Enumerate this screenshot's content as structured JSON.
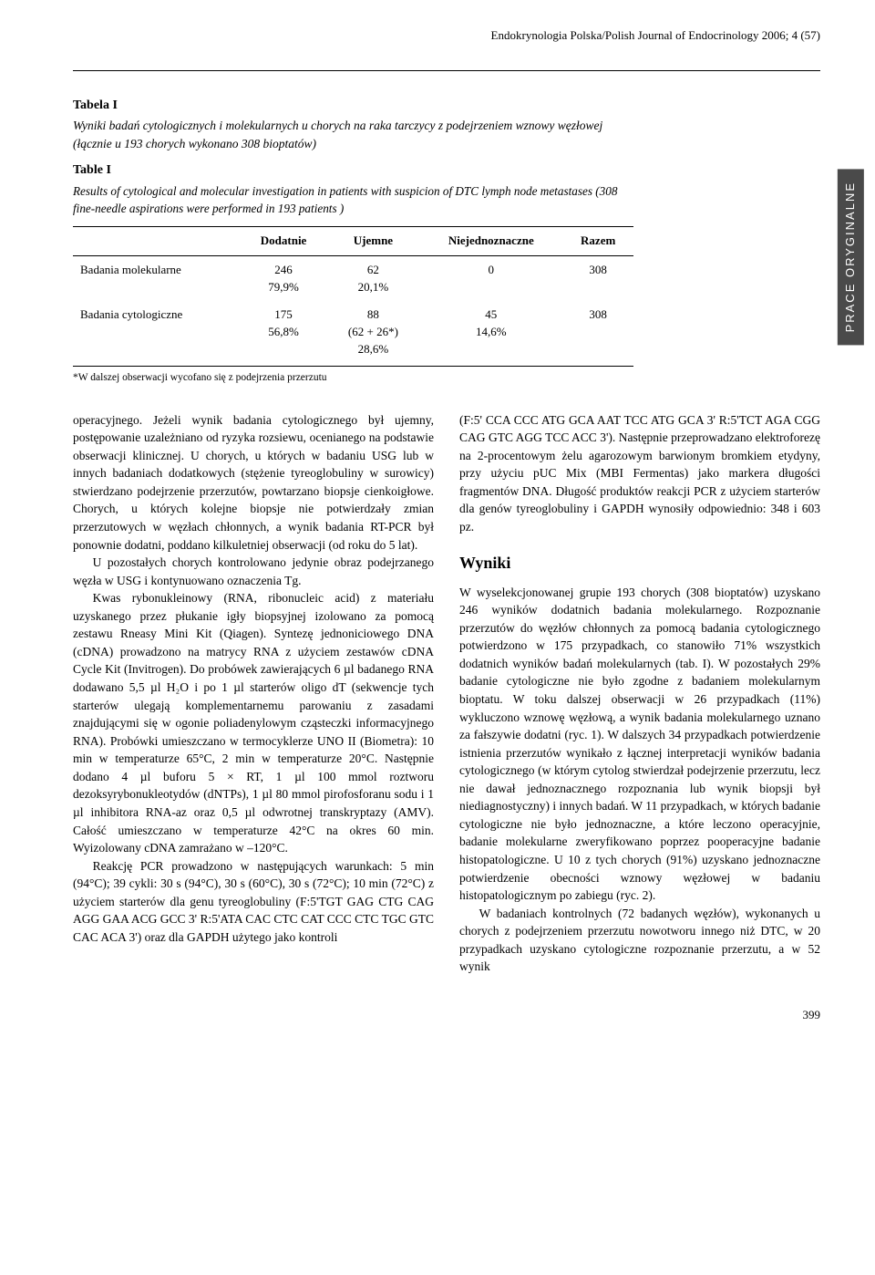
{
  "journal_header": "Endokrynologia Polska/Polish Journal of Endocrinology 2006; 4 (57)",
  "side_label": "PRACE ORYGINALNE",
  "table": {
    "label_pl": "Tabela I",
    "caption_pl": "Wyniki badań cytologicznych i molekularnych u chorych na raka tarczycy z podejrzeniem wznowy węzłowej (łącznie u 193 chorych wykonano 308 bioptatów)",
    "label_en": "Table I",
    "caption_en": "Results of cytological and molecular investigation in patients with suspicion of DTC lymph node metastases (308 fine-needle aspirations were performed in 193 patients )",
    "headers": [
      "",
      "Dodatnie",
      "Ujemne",
      "Niejednoznaczne",
      "Razem"
    ],
    "rows": [
      {
        "label": "Badania molekularne",
        "c1a": "246",
        "c1b": "79,9%",
        "c2a": "62",
        "c2b": "20,1%",
        "c3a": "0",
        "c3b": "",
        "c4a": "308",
        "c4b": ""
      },
      {
        "label": "Badania cytologiczne",
        "c1a": "175",
        "c1b": "56,8%",
        "c2a": "88",
        "c2b": "(62 + 26*)",
        "c2c": "28,6%",
        "c3a": "45",
        "c3b": "14,6%",
        "c4a": "308",
        "c4b": ""
      }
    ],
    "footnote": "*W dalszej obserwacji wycofano się z podejrzenia przerzutu"
  },
  "left_col": {
    "p1": "operacyjnego. Jeżeli wynik badania cytologicznego był ujemny, postępowanie uzależniano od ryzyka rozsiewu, ocenianego na podstawie obserwacji klinicznej. U chorych, u których w badaniu USG lub w innych badaniach dodatkowych (stężenie tyreoglobuliny w surowicy) stwierdzano podejrzenie przerzutów, powtarzano biopsje cienkoigłowe. Chorych, u których kolejne biopsje nie potwierdzały zmian przerzutowych w węzłach chłonnych, a wynik badania RT-PCR był ponownie dodatni, poddano kilkuletniej obserwacji (od roku do 5 lat).",
    "p2": "U pozostałych chorych kontrolowano jedynie obraz podejrzanego węzła w USG i kontynuowano oznaczenia Tg.",
    "p3": "Kwas rybonukleinowy (RNA, ribonucleic acid) z materiału uzyskanego przez płukanie igły biopsyjnej izolowano za pomocą zestawu Rneasy Mini Kit (Qiagen). Syntezę jednoniciowego DNA (cDNA) prowadzono na matrycy RNA z użyciem zestawów cDNA Cycle Kit (Invitrogen). Do probówek zawierających 6 µl badanego RNA dodawano 5,5 µl H₂O i po 1 µl starterów oligo dT (sekwencje tych starterów ulegają komplementarnemu parowaniu z zasadami znajdującymi się w ogonie poliadenylowym cząsteczki informacyjnego RNA). Probówki umieszczano w termocyklerze UNO II (Biometra): 10 min w temperaturze 65°C, 2 min w temperaturze 20°C. Następnie dodano 4 µl buforu 5 × RT, 1 µl 100 mmol roztworu dezoksyrybonukleotydów (dNTPs), 1 µl 80 mmol pirofosforanu sodu i 1 µl inhibitora RNA-az oraz 0,5 µl odwrotnej transkryptazy (AMV). Całość umieszczano w temperaturze 42°C na okres 60 min. Wyizolowany cDNA zamrażano w –120°C.",
    "p4": "Reakcję PCR prowadzono w następujących warunkach: 5 min (94°C); 39 cykli: 30 s (94°C), 30 s (60°C), 30 s (72°C); 10 min (72°C) z użyciem starterów dla genu tyreoglobuliny (F:5'TGT GAG CTG CAG AGG GAA ACG GCC 3' R:5'ATA CAC CTC CAT CCC CTC TGC GTC CAC ACA 3') oraz dla GAPDH użytego jako kontroli"
  },
  "right_col": {
    "p1": "(F:5' CCA CCC ATG GCA AAT TCC ATG GCA 3' R:5'TCT AGA CGG CAG GTC AGG TCC ACC 3'). Następnie przeprowadzano elektroforezę na 2-procentowym żelu agarozowym barwionym bromkiem etydyny, przy użyciu pUC Mix (MBI Fermentas) jako markera długości fragmentów DNA. Długość produktów reakcji PCR z użyciem starterów dla genów tyreoglobuliny i GAPDH wynosiły odpowiednio: 348 i 603 pz.",
    "heading": "Wyniki",
    "p2": "W wyselekcjonowanej grupie 193 chorych (308 bioptatów) uzyskano 246 wyników dodatnich badania molekularnego. Rozpoznanie przerzutów do węzłów chłonnych za pomocą badania cytologicznego potwierdzono w 175 przypadkach, co stanowiło 71% wszystkich dodatnich wyników badań molekularnych (tab. I). W pozostałych 29% badanie cytologiczne nie było zgodne z badaniem molekularnym bioptatu. W toku dalszej obserwacji w 26 przypadkach (11%) wykluczono wznowę węzłową, a wynik badania molekularnego uznano za fałszywie dodatni (ryc. 1). W dalszych 34 przypadkach potwierdzenie istnienia przerzutów wynikało z łącznej interpretacji wyników badania cytologicznego (w którym cytolog stwierdzał podejrzenie przerzutu, lecz nie dawał jednoznacznego rozpoznania lub wynik biopsji był niediagnostyczny) i innych badań. W 11 przypadkach, w których badanie cytologiczne nie było jednoznaczne, a które leczono operacyjnie, badanie molekularne zweryfikowano poprzez pooperacyjne badanie histopatologiczne. U 10 z tych chorych (91%) uzyskano jednoznaczne potwierdzenie obecności wznowy węzłowej w badaniu histopatologicznym po zabiegu (ryc. 2).",
    "p3": "W badaniach kontrolnych (72 badanych węzłów), wykonanych u chorych z podejrzeniem przerzutu nowotworu innego niż DTC, w 20 przypadkach uzyskano cytologiczne rozpoznanie przerzutu, a w 52 wynik"
  },
  "page_number": "399"
}
